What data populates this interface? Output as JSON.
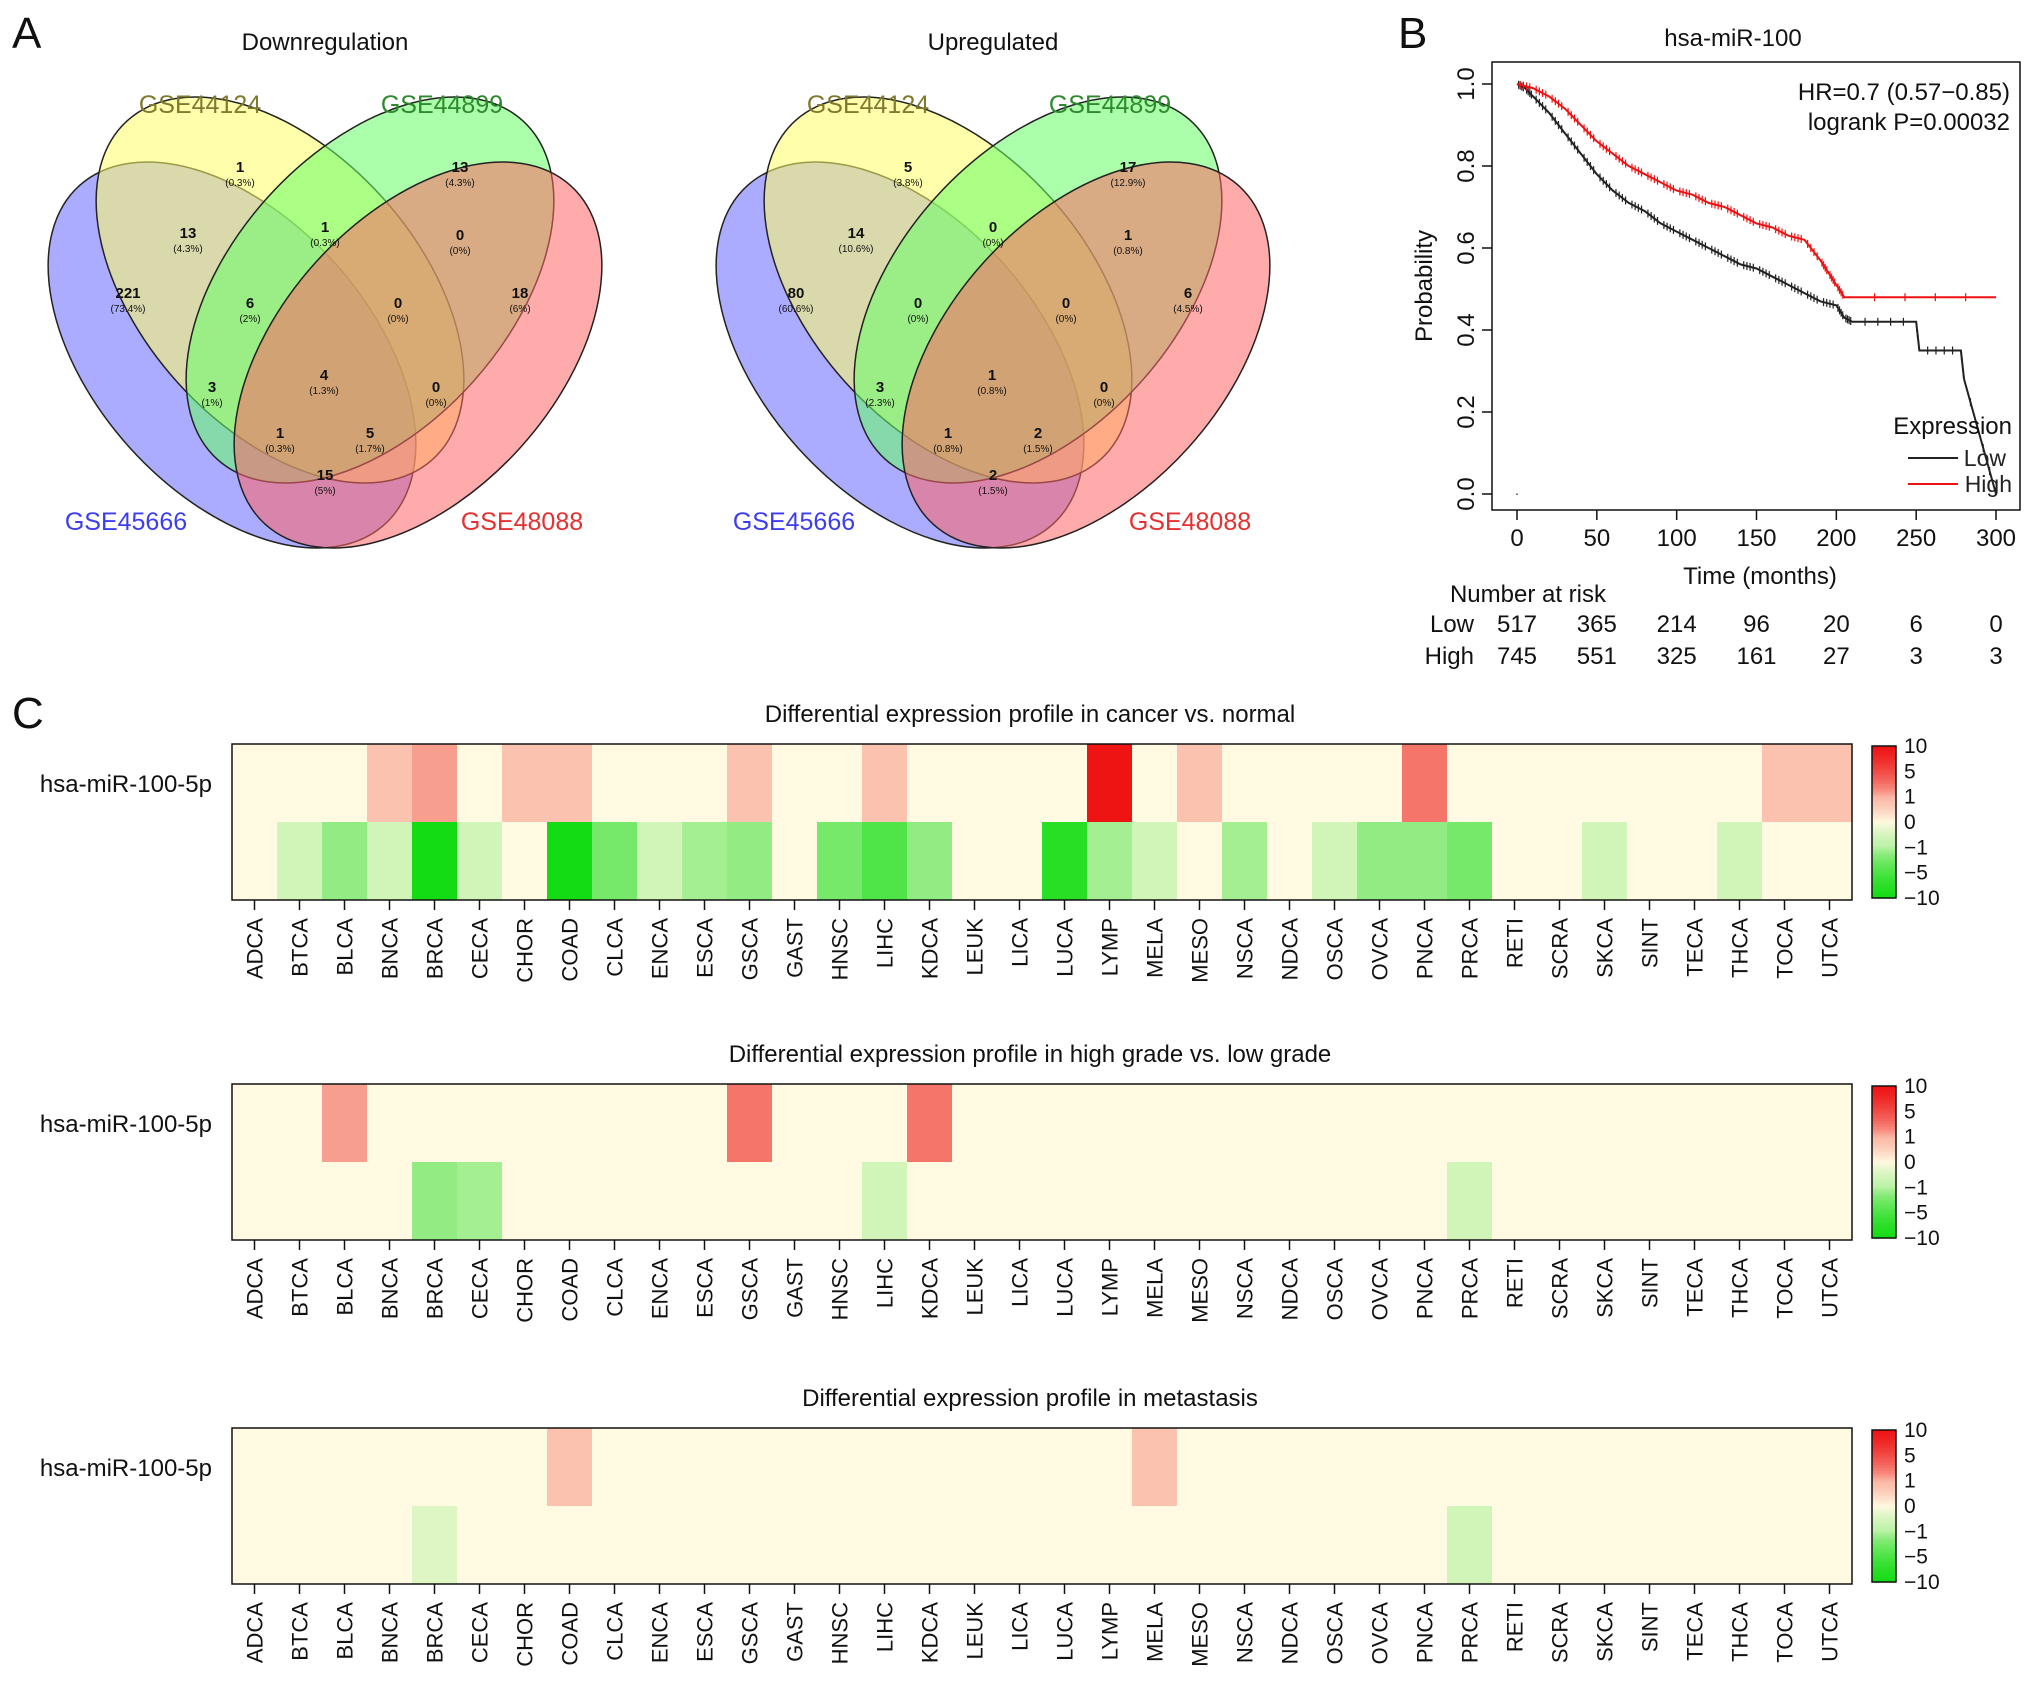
{
  "panels": {
    "a": "A",
    "b": "B",
    "c": "C"
  },
  "colors": {
    "set1": "#807a2f",
    "set2": "#2d8a2d",
    "set3": "#3d3df0",
    "set4": "#e53030",
    "low": "#222222",
    "high": "#ee1111"
  },
  "chart_data": [
    {
      "type": "venn",
      "title": "Downregulation",
      "sets": [
        "GSE44124",
        "GSE44899",
        "GSE45666",
        "GSE48088"
      ],
      "regions": [
        {
          "count": "1",
          "pct": "(0.3%)"
        },
        {
          "count": "13",
          "pct": "(4.3%)"
        },
        {
          "count": "13",
          "pct": "(4.3%)"
        },
        {
          "count": "1",
          "pct": "(0.3%)"
        },
        {
          "count": "0",
          "pct": "(0%)"
        },
        {
          "count": "221",
          "pct": "(73.4%)"
        },
        {
          "count": "6",
          "pct": "(2%)"
        },
        {
          "count": "0",
          "pct": "(0%)"
        },
        {
          "count": "18",
          "pct": "(6%)"
        },
        {
          "count": "4",
          "pct": "(1.3%)"
        },
        {
          "count": "3",
          "pct": "(1%)"
        },
        {
          "count": "0",
          "pct": "(0%)"
        },
        {
          "count": "1",
          "pct": "(0.3%)"
        },
        {
          "count": "5",
          "pct": "(1.7%)"
        },
        {
          "count": "15",
          "pct": "(5%)"
        }
      ]
    },
    {
      "type": "venn",
      "title": "Upregulated",
      "sets": [
        "GSE44124",
        "GSE44899",
        "GSE45666",
        "GSE48088"
      ],
      "regions": [
        {
          "count": "5",
          "pct": "(3.8%)"
        },
        {
          "count": "14",
          "pct": "(10.6%)"
        },
        {
          "count": "17",
          "pct": "(12.9%)"
        },
        {
          "count": "0",
          "pct": "(0%)"
        },
        {
          "count": "1",
          "pct": "(0.8%)"
        },
        {
          "count": "80",
          "pct": "(60.6%)"
        },
        {
          "count": "0",
          "pct": "(0%)"
        },
        {
          "count": "0",
          "pct": "(0%)"
        },
        {
          "count": "6",
          "pct": "(4.5%)"
        },
        {
          "count": "1",
          "pct": "(0.8%)"
        },
        {
          "count": "3",
          "pct": "(2.3%)"
        },
        {
          "count": "0",
          "pct": "(0%)"
        },
        {
          "count": "1",
          "pct": "(0.8%)"
        },
        {
          "count": "2",
          "pct": "(1.5%)"
        },
        {
          "count": "2",
          "pct": "(1.5%)"
        }
      ]
    },
    {
      "type": "line",
      "subtype": "kaplan-meier",
      "title": "hsa-miR-100",
      "xlabel": "Time (months)",
      "ylabel": "Probability",
      "xlim": [
        0,
        300
      ],
      "ylim": [
        0,
        1
      ],
      "xticks": [
        "0",
        "50",
        "100",
        "150",
        "200",
        "250",
        "300"
      ],
      "yticks": [
        "0.0",
        "0.2",
        "0.4",
        "0.6",
        "0.8",
        "1.0"
      ],
      "stats": [
        "HR=0.7 (0.57−0.85)",
        "logrank P=0.00032"
      ],
      "legend_title": "Expression",
      "series": [
        {
          "name": "Low",
          "points": [
            [
              0,
              1.0
            ],
            [
              5,
              0.99
            ],
            [
              10,
              0.97
            ],
            [
              20,
              0.93
            ],
            [
              30,
              0.88
            ],
            [
              40,
              0.83
            ],
            [
              50,
              0.78
            ],
            [
              60,
              0.74
            ],
            [
              70,
              0.71
            ],
            [
              80,
              0.69
            ],
            [
              90,
              0.66
            ],
            [
              100,
              0.64
            ],
            [
              110,
              0.62
            ],
            [
              120,
              0.6
            ],
            [
              130,
              0.58
            ],
            [
              140,
              0.56
            ],
            [
              150,
              0.55
            ],
            [
              160,
              0.53
            ],
            [
              170,
              0.51
            ],
            [
              180,
              0.49
            ],
            [
              190,
              0.47
            ],
            [
              200,
              0.46
            ],
            [
              205,
              0.43
            ],
            [
              210,
              0.42
            ],
            [
              250,
              0.42
            ],
            [
              252,
              0.35
            ],
            [
              278,
              0.35
            ],
            [
              280,
              0.28
            ],
            [
              300,
              0.0
            ]
          ]
        },
        {
          "name": "High",
          "points": [
            [
              0,
              1.0
            ],
            [
              10,
              0.99
            ],
            [
              20,
              0.97
            ],
            [
              30,
              0.94
            ],
            [
              40,
              0.9
            ],
            [
              50,
              0.86
            ],
            [
              60,
              0.83
            ],
            [
              70,
              0.8
            ],
            [
              80,
              0.78
            ],
            [
              90,
              0.76
            ],
            [
              100,
              0.74
            ],
            [
              110,
              0.73
            ],
            [
              120,
              0.71
            ],
            [
              130,
              0.7
            ],
            [
              140,
              0.68
            ],
            [
              150,
              0.66
            ],
            [
              160,
              0.65
            ],
            [
              170,
              0.63
            ],
            [
              180,
              0.62
            ],
            [
              190,
              0.57
            ],
            [
              195,
              0.54
            ],
            [
              200,
              0.51
            ],
            [
              205,
              0.48
            ],
            [
              300,
              0.48
            ]
          ]
        }
      ],
      "risk_table": {
        "title": "Number at risk",
        "rows": [
          {
            "name": "Low",
            "values": [
              "517",
              "365",
              "214",
              "96",
              "20",
              "6",
              "0"
            ]
          },
          {
            "name": "High",
            "values": [
              "745",
              "551",
              "325",
              "161",
              "27",
              "3",
              "3"
            ]
          }
        ]
      }
    },
    {
      "type": "heatmap",
      "title": "Differential expression profile in cancer vs. normal",
      "row_label": "hsa-miR-100-5p",
      "categories": [
        "ADCA",
        "BTCA",
        "BLCA",
        "BNCA",
        "BRCA",
        "CECA",
        "CHOR",
        "COAD",
        "CLCA",
        "ENCA",
        "ESCA",
        "GSCA",
        "GAST",
        "HNSC",
        "LIHC",
        "KDCA",
        "LEUK",
        "LICA",
        "LUCA",
        "LYMP",
        "MELA",
        "MESO",
        "NSCA",
        "NDCA",
        "OSCA",
        "OVCA",
        "PNCA",
        "PRCA",
        "RETI",
        "SCRA",
        "SKCA",
        "SINT",
        "TECA",
        "THCA",
        "TOCA",
        "UTCA"
      ],
      "up": [
        0,
        0,
        0,
        0.8,
        1.6,
        0,
        0.8,
        0.8,
        0,
        0,
        0,
        0.8,
        0,
        0,
        0.8,
        0,
        0,
        0,
        0,
        10,
        0,
        0.8,
        0,
        0,
        0,
        0,
        3,
        0,
        0,
        0,
        0,
        0,
        0,
        0,
        0.8,
        0.8
      ],
      "down": [
        0,
        -0.6,
        -2,
        -0.6,
        -10,
        -0.6,
        0,
        -10,
        -3,
        -0.6,
        -1.5,
        -2,
        0,
        -3,
        -5,
        -2,
        0,
        0,
        -8,
        -1.5,
        -0.6,
        0,
        -1.5,
        0,
        -0.6,
        -2,
        -2,
        -3,
        0,
        0,
        -0.6,
        0,
        0,
        -0.6,
        0,
        0
      ],
      "legend_ticks": [
        "10",
        "5",
        "1",
        "0",
        "−1",
        "−5",
        "−10"
      ]
    },
    {
      "type": "heatmap",
      "title": "Differential expression profile in high grade vs. low grade",
      "row_label": "hsa-miR-100-5p",
      "categories": [
        "ADCA",
        "BTCA",
        "BLCA",
        "BNCA",
        "BRCA",
        "CECA",
        "CHOR",
        "COAD",
        "CLCA",
        "ENCA",
        "ESCA",
        "GSCA",
        "GAST",
        "HNSC",
        "LIHC",
        "KDCA",
        "LEUK",
        "LICA",
        "LUCA",
        "LYMP",
        "MELA",
        "MESO",
        "NSCA",
        "NDCA",
        "OSCA",
        "OVCA",
        "PNCA",
        "PRCA",
        "RETI",
        "SCRA",
        "SKCA",
        "SINT",
        "TECA",
        "THCA",
        "TOCA",
        "UTCA"
      ],
      "up": [
        0,
        0,
        1.6,
        0,
        0,
        0,
        0,
        0,
        0,
        0,
        0,
        3,
        0,
        0,
        0,
        3,
        0,
        0,
        0,
        0,
        0,
        0,
        0,
        0,
        0,
        0,
        0,
        0,
        0,
        0,
        0,
        0,
        0,
        0,
        0,
        0
      ],
      "down": [
        0,
        0,
        0,
        0,
        -2,
        -1.5,
        0,
        0,
        0,
        0,
        0,
        0,
        0,
        0,
        -0.6,
        0,
        0,
        0,
        0,
        0,
        0,
        0,
        0,
        0,
        0,
        0,
        0,
        -0.6,
        0,
        0,
        0,
        0,
        0,
        0,
        0,
        0
      ],
      "legend_ticks": [
        "10",
        "5",
        "1",
        "0",
        "−1",
        "−5",
        "−10"
      ]
    },
    {
      "type": "heatmap",
      "title": "Differential expression profile in metastasis",
      "row_label": "hsa-miR-100-5p",
      "categories": [
        "ADCA",
        "BTCA",
        "BLCA",
        "BNCA",
        "BRCA",
        "CECA",
        "CHOR",
        "COAD",
        "CLCA",
        "ENCA",
        "ESCA",
        "GSCA",
        "GAST",
        "HNSC",
        "LIHC",
        "KDCA",
        "LEUK",
        "LICA",
        "LUCA",
        "LYMP",
        "MELA",
        "MESO",
        "NSCA",
        "NDCA",
        "OSCA",
        "OVCA",
        "PNCA",
        "PRCA",
        "RETI",
        "SCRA",
        "SKCA",
        "SINT",
        "TECA",
        "THCA",
        "TOCA",
        "UTCA"
      ],
      "up": [
        0,
        0,
        0,
        0,
        0,
        0,
        0,
        0.8,
        0,
        0,
        0,
        0,
        0,
        0,
        0,
        0,
        0,
        0,
        0,
        0,
        0.8,
        0,
        0,
        0,
        0,
        0,
        0,
        0,
        0,
        0,
        0,
        0,
        0,
        0,
        0,
        0
      ],
      "down": [
        0,
        0,
        0,
        0,
        -0.4,
        0,
        0,
        0,
        0,
        0,
        0,
        0,
        0,
        0,
        0,
        0,
        0,
        0,
        0,
        0,
        0,
        0,
        0,
        0,
        0,
        0,
        0,
        -0.6,
        0,
        0,
        0,
        0,
        0,
        0,
        0,
        0
      ],
      "legend_ticks": [
        "10",
        "5",
        "1",
        "0",
        "−1",
        "−5",
        "−10"
      ]
    }
  ]
}
